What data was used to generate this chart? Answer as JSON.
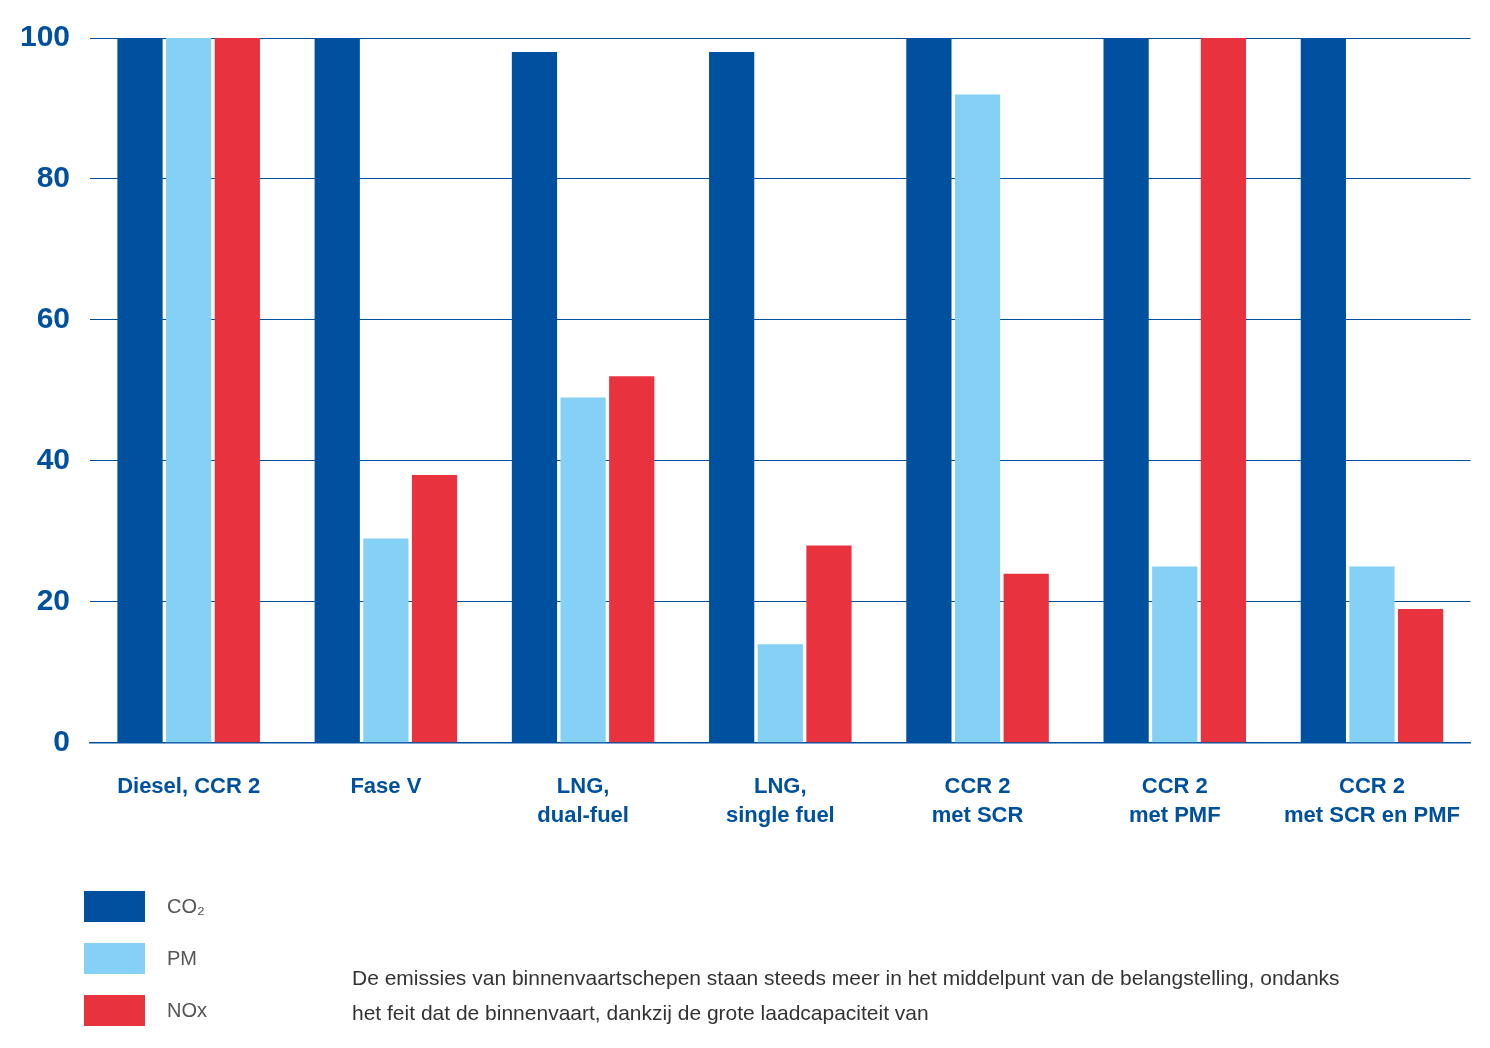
{
  "chart_data": {
    "type": "bar",
    "categories": [
      "Diesel, CCR 2",
      "Fase V",
      "LNG,\ndual-fuel",
      "LNG,\nsingle fuel",
      "CCR 2\nmet SCR",
      "CCR 2\nmet PMF",
      "CCR 2\nmet SCR en PMF"
    ],
    "series": [
      {
        "name": "CO₂",
        "color": "#0050a0",
        "values": [
          100,
          100,
          98,
          98,
          100,
          100,
          100
        ]
      },
      {
        "name": "PM",
        "color": "#85d0f5",
        "values": [
          100,
          29,
          49,
          14,
          92,
          25,
          25
        ]
      },
      {
        "name": "NOx",
        "color": "#e8333f",
        "values": [
          100,
          38,
          52,
          28,
          24,
          100,
          19
        ]
      }
    ],
    "ylim": [
      0,
      100
    ],
    "yticks": [
      0,
      20,
      40,
      60,
      80,
      100
    ],
    "grid": "y",
    "legend": "bottom left",
    "annotations": [
      "De emissies van binnenvaartschepen staan steeds meer in het middelpunt van de belangstelling, ondanks het feit dat de binnenvaart, dankzij de grote laadcapaciteit van"
    ]
  }
}
